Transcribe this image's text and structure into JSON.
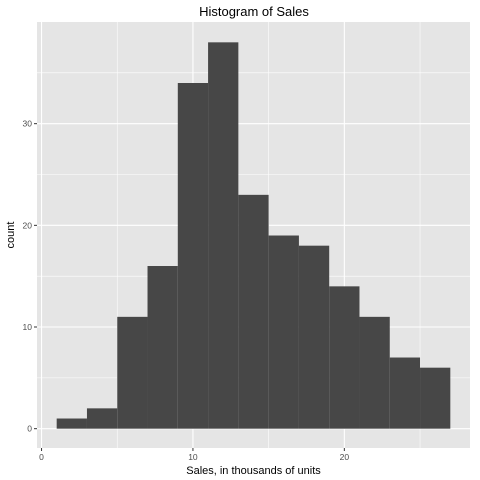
{
  "chart_data": {
    "type": "bar",
    "title": "Histogram of Sales",
    "xlabel": "Sales, in thousands of units",
    "ylabel": "count",
    "bins": [
      {
        "start": 1.0,
        "end": 3.0,
        "count": 1
      },
      {
        "start": 3.0,
        "end": 5.0,
        "count": 2
      },
      {
        "start": 5.0,
        "end": 7.0,
        "count": 11
      },
      {
        "start": 7.0,
        "end": 9.0,
        "count": 16
      },
      {
        "start": 9.0,
        "end": 11.0,
        "count": 34
      },
      {
        "start": 11.0,
        "end": 13.0,
        "count": 38
      },
      {
        "start": 13.0,
        "end": 15.0,
        "count": 23
      },
      {
        "start": 15.0,
        "end": 17.0,
        "count": 19
      },
      {
        "start": 17.0,
        "end": 19.0,
        "count": 18
      },
      {
        "start": 19.0,
        "end": 21.0,
        "count": 14
      },
      {
        "start": 21.0,
        "end": 23.0,
        "count": 11
      },
      {
        "start": 23.0,
        "end": 25.0,
        "count": 7
      },
      {
        "start": 25.0,
        "end": 27.0,
        "count": 6
      }
    ],
    "xlim": [
      -0.3,
      28.3
    ],
    "ylim": [
      -1.9,
      40.0
    ],
    "x_ticks": [
      0,
      10,
      20
    ],
    "x_minor_ticks": [
      5,
      15,
      25
    ],
    "y_ticks": [
      0,
      10,
      20,
      30
    ],
    "y_minor_ticks": [
      5,
      15,
      25,
      35
    ],
    "grid": true,
    "colors": {
      "panel_background": "#e5e5e5",
      "grid_line": "#ffffff",
      "bar_fill": "#474747",
      "tick_label": "#4d4d4d",
      "tick_mark": "#333333"
    }
  }
}
